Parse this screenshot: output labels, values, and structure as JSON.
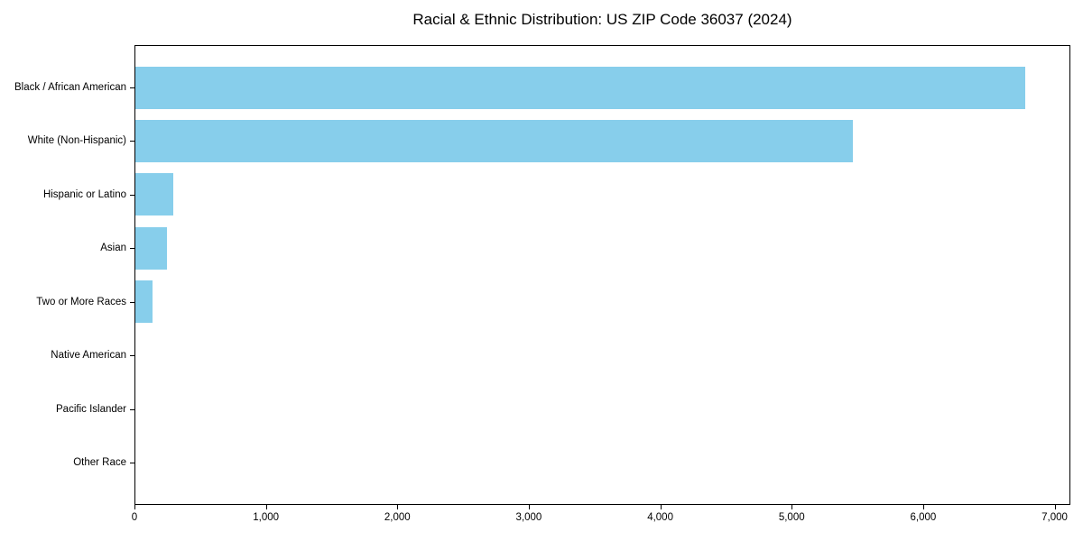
{
  "chart_data": {
    "type": "bar",
    "orientation": "horizontal",
    "title": "Racial & Ethnic Distribution: US ZIP Code 36037 (2024)",
    "categories": [
      "Black / African American",
      "White (Non-Hispanic)",
      "Hispanic or Latino",
      "Asian",
      "Two or More Races",
      "Native American",
      "Pacific Islander",
      "Other Race"
    ],
    "values": [
      6780,
      5465,
      295,
      248,
      138,
      8,
      0,
      0
    ],
    "xlabel": "",
    "ylabel": "",
    "xlim": [
      0,
      7120
    ],
    "x_ticks": [
      0,
      1000,
      2000,
      3000,
      4000,
      5000,
      6000,
      7000
    ],
    "x_tick_labels": [
      "0",
      "1,000",
      "2,000",
      "3,000",
      "4,000",
      "5,000",
      "6,000",
      "7,000"
    ],
    "bar_color": "#87CEEB",
    "axis_color": "#000000",
    "text_color": "#000000",
    "background_color": "#ffffff",
    "grid": false,
    "legend": "none"
  }
}
